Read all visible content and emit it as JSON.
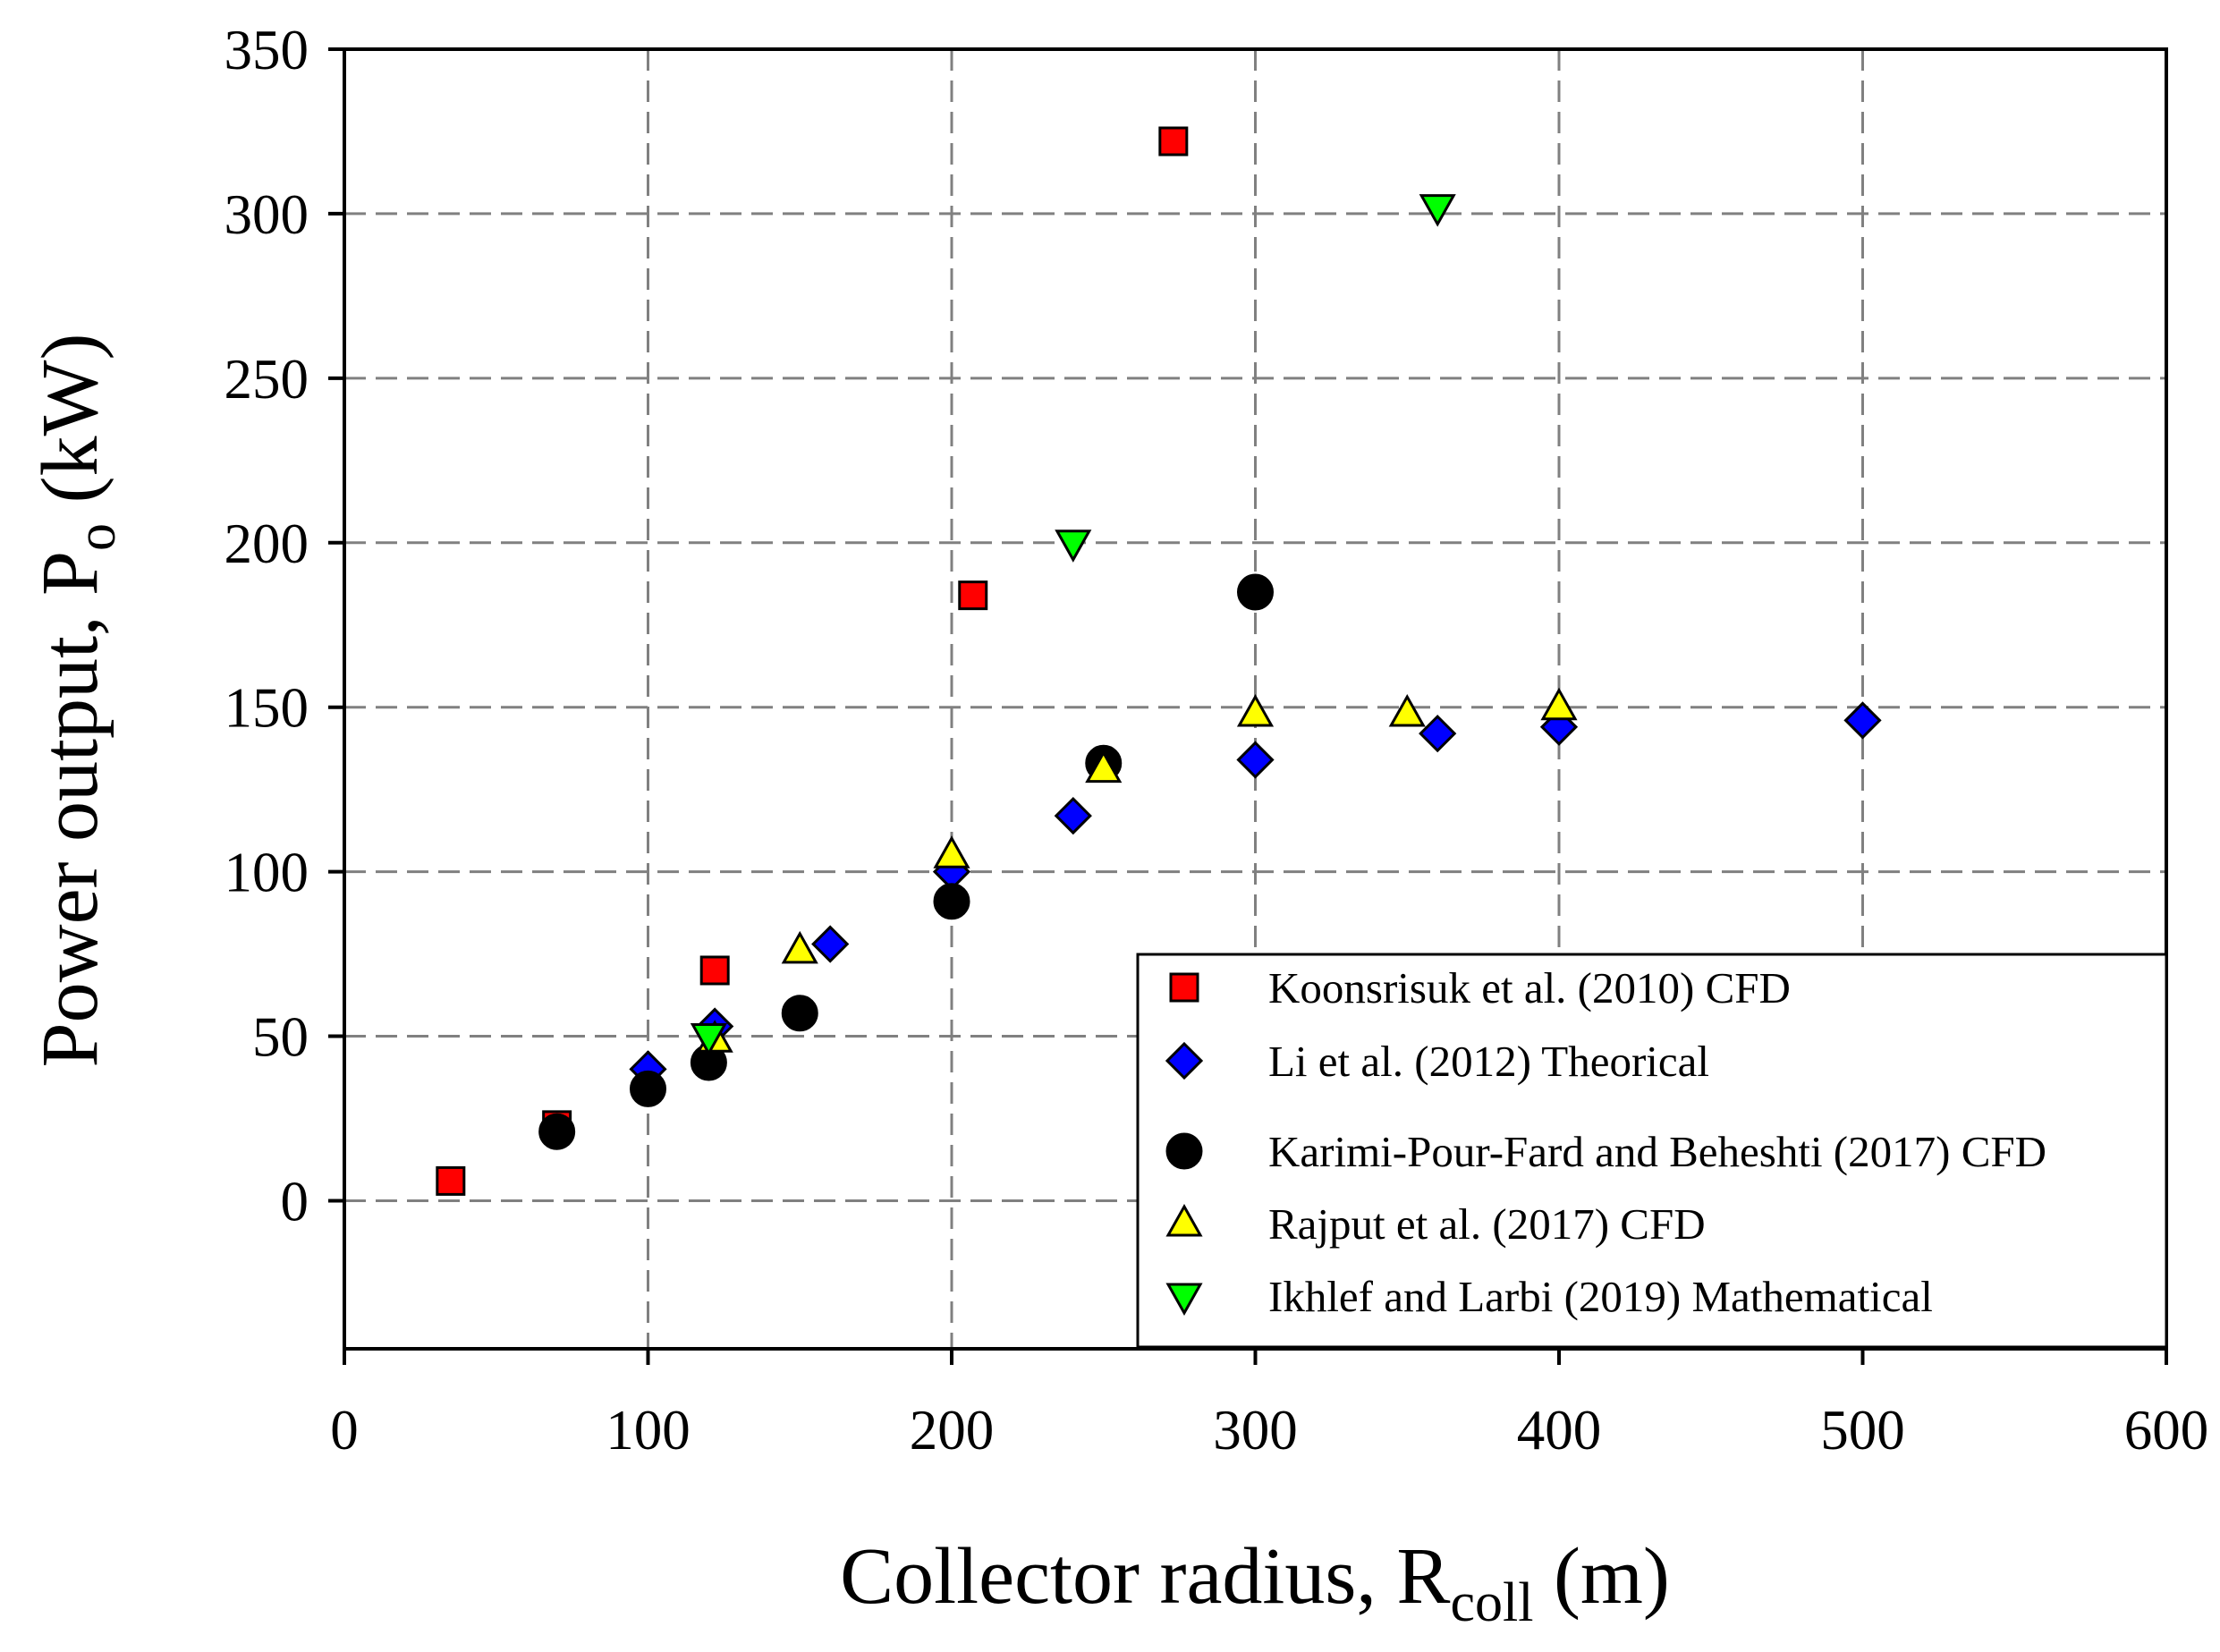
{
  "chart_data": {
    "type": "scatter",
    "title": "",
    "xlabel": {
      "main": "Collector radius, R",
      "sub": "coll",
      "unit": " (m)"
    },
    "ylabel": {
      "main": "Power output, P",
      "sub": "o",
      "unit": " (kW)"
    },
    "xlim": [
      0,
      600
    ],
    "ylim": [
      -45,
      350
    ],
    "xticks": [
      0,
      100,
      200,
      300,
      400,
      500,
      600
    ],
    "yticks": [
      0,
      50,
      100,
      150,
      200,
      250,
      300,
      350
    ],
    "grid": true,
    "legend_position": "bottom-right",
    "series": [
      {
        "name": "Koonsrisuk et al. (2010) CFD",
        "marker": "square",
        "color": "#ff0000",
        "points": [
          [
            35,
            6
          ],
          [
            70,
            23
          ],
          [
            122,
            70
          ],
          [
            207,
            184
          ],
          [
            273,
            322
          ]
        ]
      },
      {
        "name": "Li et al. (2012) Theorical",
        "marker": "diamond",
        "color": "#0000ff",
        "points": [
          [
            100,
            40
          ],
          [
            122,
            53
          ],
          [
            160,
            78
          ],
          [
            200,
            100
          ],
          [
            240,
            117
          ],
          [
            300,
            134
          ],
          [
            360,
            142
          ],
          [
            400,
            144
          ],
          [
            500,
            146
          ]
        ]
      },
      {
        "name": "Karimi-Pour-Fard and Beheshti (2017) CFD",
        "marker": "circle",
        "color": "#000000",
        "points": [
          [
            70,
            21
          ],
          [
            100,
            34
          ],
          [
            120,
            42
          ],
          [
            150,
            57
          ],
          [
            200,
            91
          ],
          [
            250,
            133
          ],
          [
            300,
            185
          ]
        ]
      },
      {
        "name": "Rajput et al. (2017) CFD",
        "marker": "triangle-up",
        "color": "#ffff00",
        "points": [
          [
            122,
            49
          ],
          [
            150,
            76
          ],
          [
            200,
            105
          ],
          [
            250,
            131
          ],
          [
            300,
            148
          ],
          [
            350,
            148
          ],
          [
            400,
            150
          ]
        ]
      },
      {
        "name": "Ikhlef and Larbi (2019) Mathematical",
        "marker": "triangle-down",
        "color": "#00ff00",
        "points": [
          [
            120,
            50
          ],
          [
            240,
            200
          ],
          [
            360,
            302
          ]
        ]
      }
    ]
  }
}
